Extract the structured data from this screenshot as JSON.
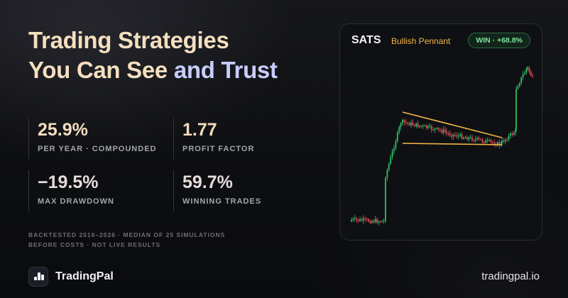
{
  "headline": {
    "line1": "Trading Strategies",
    "line2_part1": "You Can See",
    "line2_part2": "and Trust"
  },
  "stats": [
    {
      "value": "25.9%",
      "label": "PER YEAR · COMPOUNDED"
    },
    {
      "value": "1.77",
      "label": "PROFIT FACTOR"
    },
    {
      "value": "−19.5%",
      "label": "MAX DRAWDOWN"
    },
    {
      "value": "59.7%",
      "label": "WINNING TRADES"
    }
  ],
  "disclaimer": {
    "line1": "BACKTESTED 2016–2026 · MEDIAN OF 25 SIMULATIONS",
    "line2": "BEFORE COSTS · NOT LIVE RESULTS"
  },
  "brand": {
    "name": "TradingPal",
    "site": "tradingpal.io"
  },
  "card": {
    "ticker": "SATS",
    "pattern": "Bullish Pennant",
    "badge": "WIN · +68.8%",
    "colors": {
      "up": "#2fbf6a",
      "down": "#e0505a",
      "pattern_line": "#f0b64a"
    }
  }
}
